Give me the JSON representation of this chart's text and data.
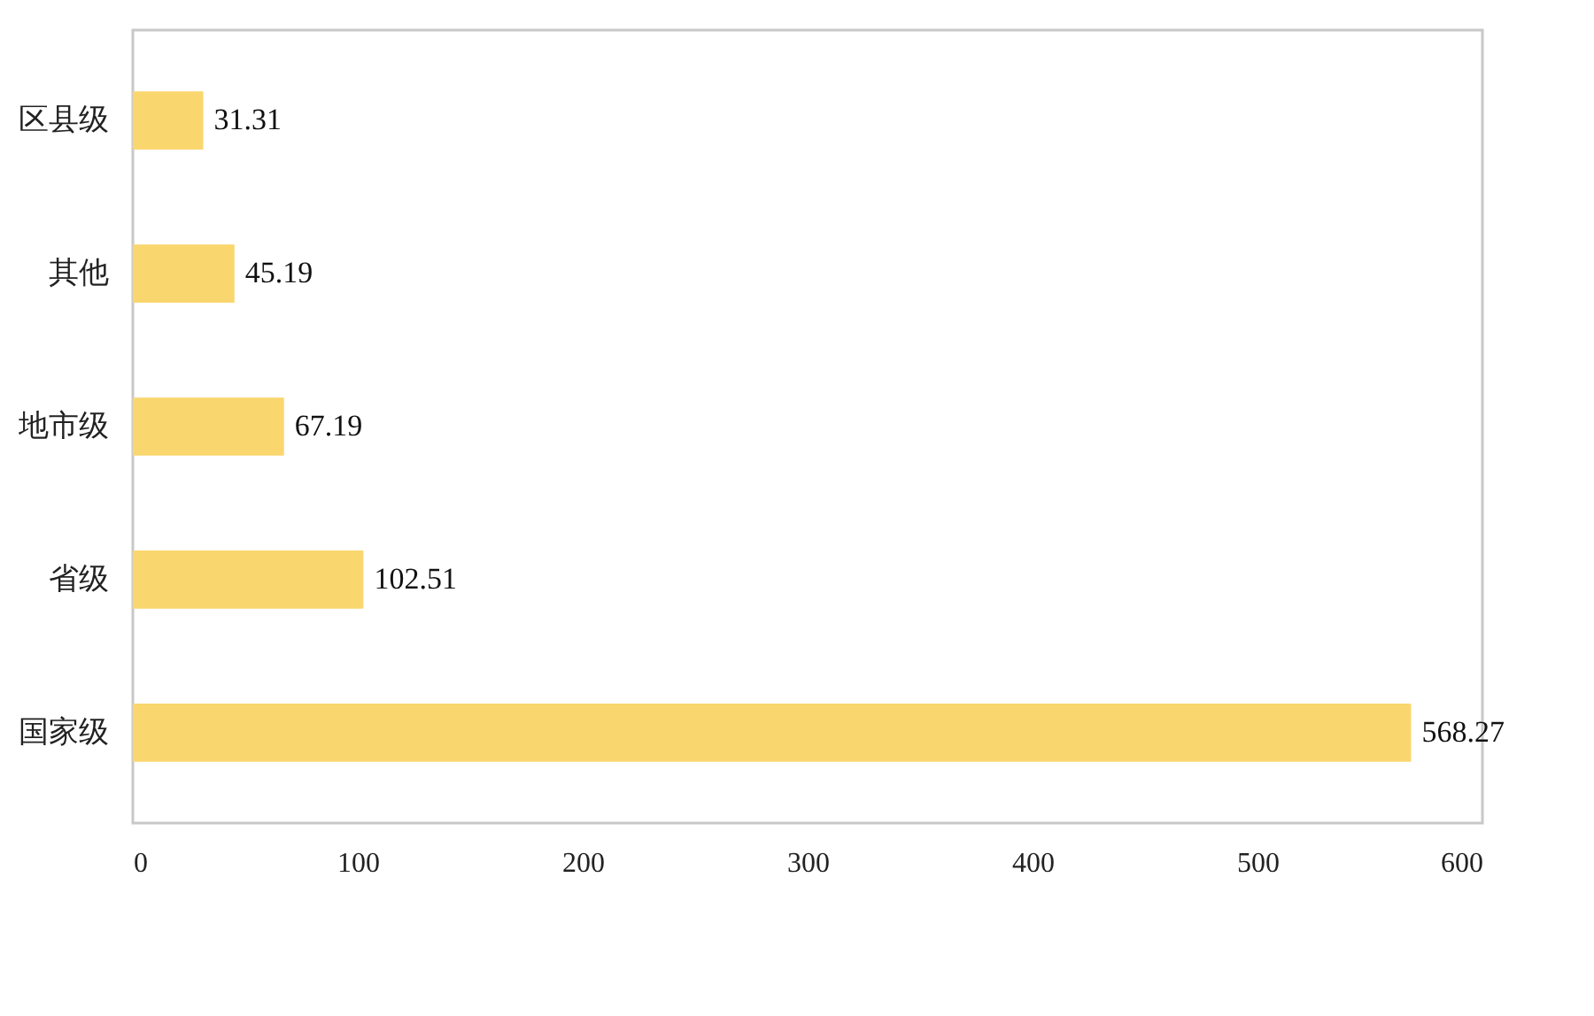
{
  "chart_data": {
    "type": "bar",
    "orientation": "horizontal",
    "categories": [
      "区县级",
      "其他",
      "地市级",
      "省级",
      "国家级"
    ],
    "values": [
      31.31,
      45.19,
      67.19,
      102.51,
      568.27
    ],
    "color": "#fad66e",
    "xlim": [
      0,
      600
    ],
    "xticks": [
      0,
      100,
      200,
      300,
      400,
      500,
      600
    ],
    "grid": false,
    "data_labels": true
  }
}
